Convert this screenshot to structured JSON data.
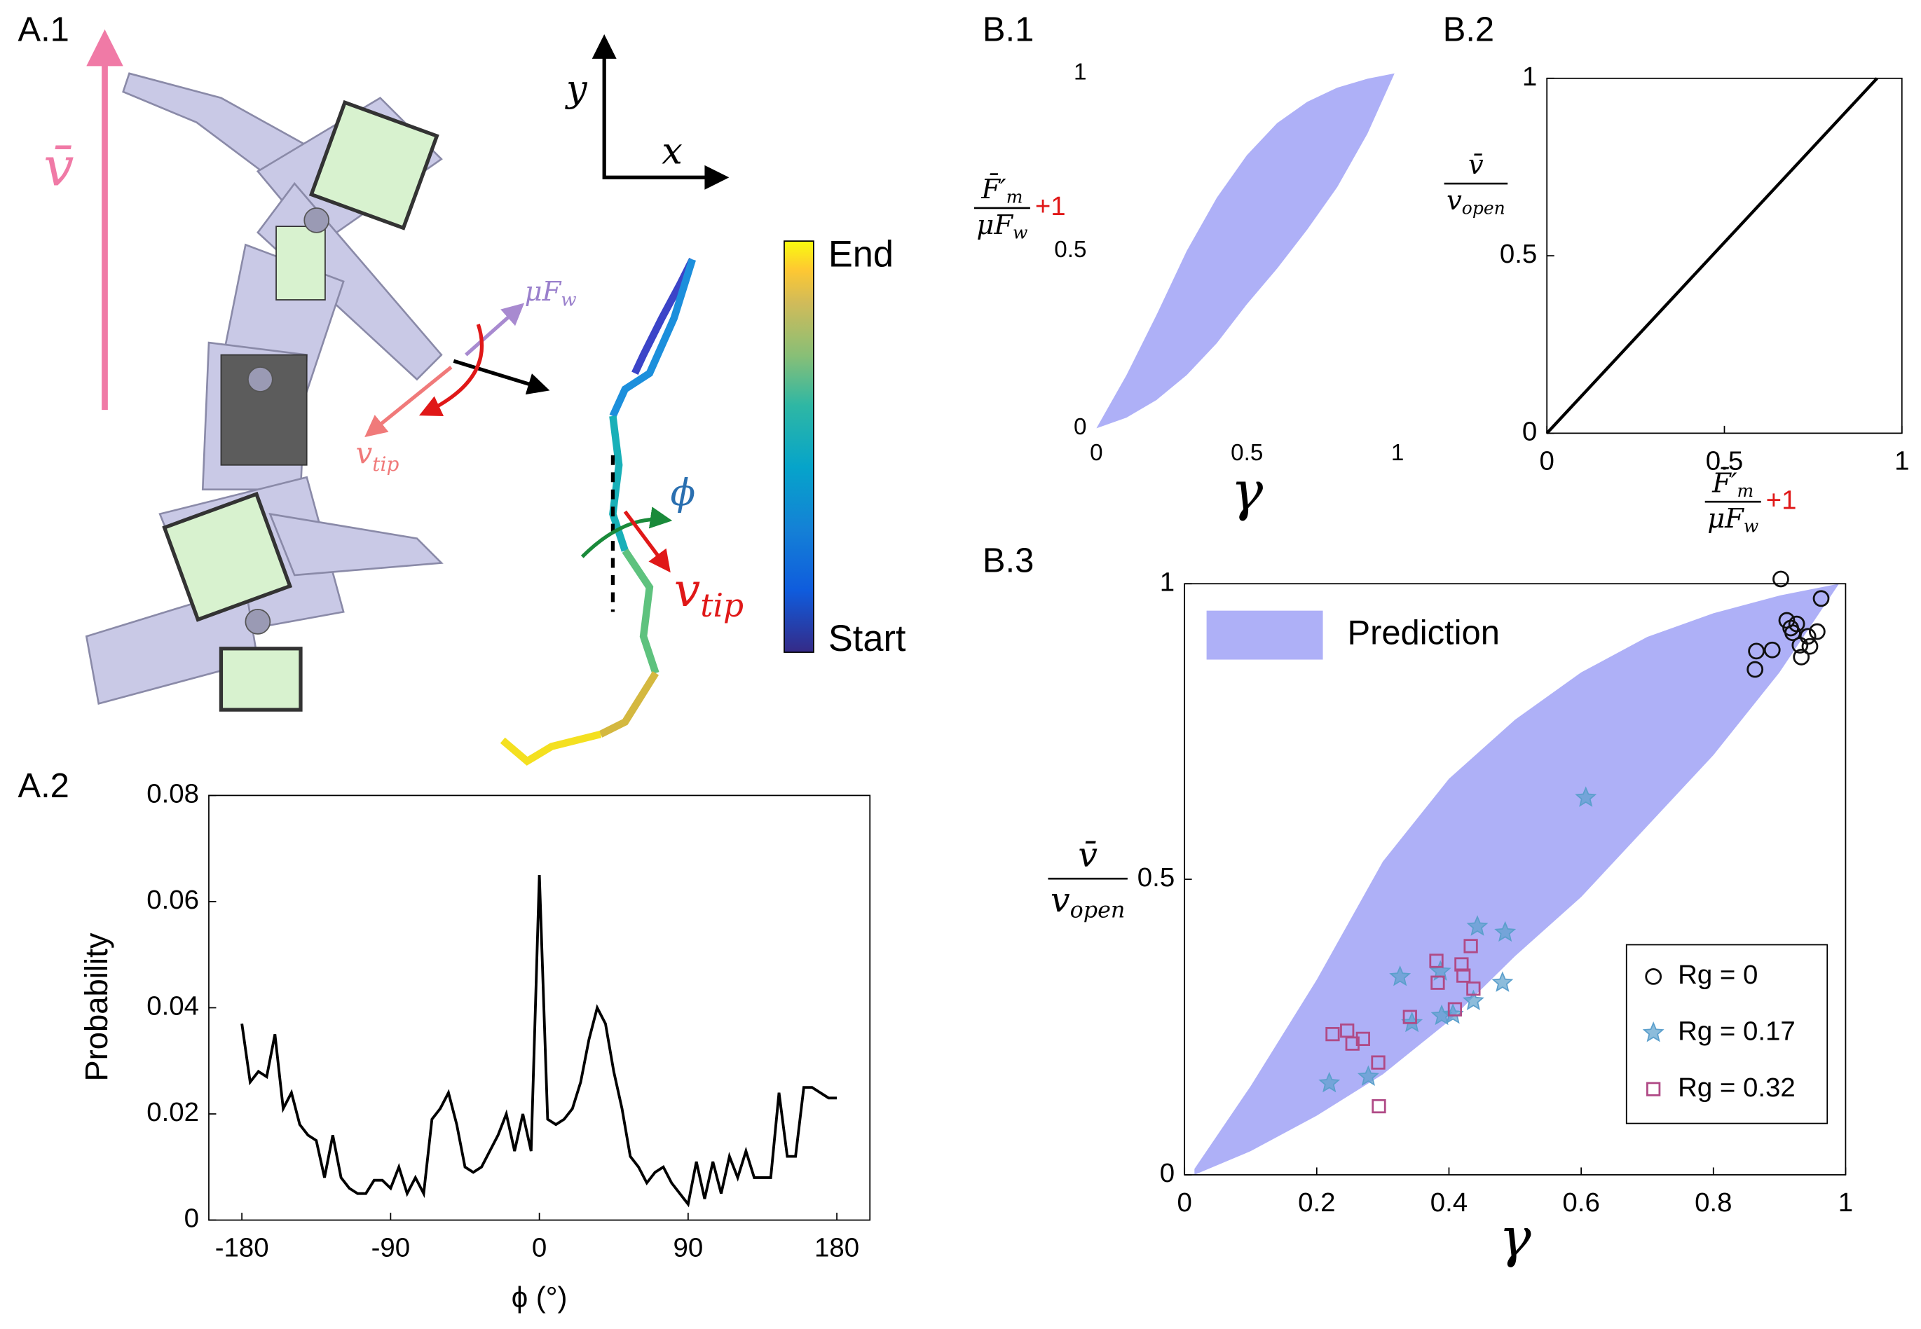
{
  "panel_labels": [
    "A.1",
    "A.2",
    "B.1",
    "B.2",
    "B.3"
  ],
  "diagram": {
    "velocity": "v̄",
    "axis_y": "y",
    "axis_x": "x",
    "friction": "μF",
    "friction_sub": "w",
    "tip_velocity": "v",
    "tip_sub": "tip",
    "angle": "ϕ",
    "tip_velocity_2": "v",
    "tip_sub_2": "tip",
    "colorbar_end": "End",
    "colorbar_start": "Start"
  },
  "chart_data": [
    {
      "type": "line",
      "xlabel": "ϕ (°)",
      "ylabel": "Probability",
      "color": "#000000",
      "xlim": [
        -200,
        200
      ],
      "ylim": [
        0,
        0.08
      ],
      "xticks": [
        -180,
        -90,
        0,
        90,
        180
      ],
      "yticks": [
        0,
        0.02,
        0.04,
        0.06,
        0.08
      ],
      "frame": true,
      "x": [
        -180,
        -175,
        -170,
        -165,
        -160,
        -155,
        -150,
        -145,
        -140,
        -135,
        -130,
        -125,
        -120,
        -115,
        -110,
        -105,
        -100,
        -95,
        -90,
        -85,
        -80,
        -75,
        -70,
        -65,
        -60,
        -55,
        -50,
        -45,
        -40,
        -35,
        -30,
        -25,
        -20,
        -15,
        -10,
        -5,
        0,
        5,
        10,
        15,
        20,
        25,
        30,
        35,
        40,
        45,
        50,
        55,
        60,
        65,
        70,
        75,
        80,
        85,
        90,
        95,
        100,
        105,
        110,
        115,
        120,
        125,
        130,
        135,
        140,
        145,
        150,
        155,
        160,
        165,
        170,
        175,
        180
      ],
      "values": [
        0.037,
        0.026,
        0.028,
        0.027,
        0.035,
        0.021,
        0.024,
        0.018,
        0.016,
        0.015,
        0.008,
        0.016,
        0.008,
        0.006,
        0.005,
        0.005,
        0.0075,
        0.0075,
        0.006,
        0.01,
        0.005,
        0.008,
        0.005,
        0.019,
        0.021,
        0.024,
        0.018,
        0.01,
        0.009,
        0.01,
        0.013,
        0.016,
        0.02,
        0.013,
        0.02,
        0.013,
        0.065,
        0.019,
        0.018,
        0.019,
        0.021,
        0.026,
        0.034,
        0.04,
        0.037,
        0.028,
        0.021,
        0.012,
        0.01,
        0.007,
        0.009,
        0.01,
        0.007,
        0.005,
        0.003,
        0.011,
        0.004,
        0.011,
        0.005,
        0.012,
        0.008,
        0.013,
        0.008,
        0.008,
        0.008,
        0.024,
        0.012,
        0.012,
        0.025,
        0.025,
        0.024,
        0.023,
        0.023
      ]
    },
    {
      "type": "area",
      "xlabel": "γ",
      "ylabel": {
        "numerator": "F̄′",
        "numerator_sub": "m",
        "denominator": "μF",
        "denominator_sub": "w",
        "suffix": "+1"
      },
      "color": "#aeb0f7",
      "xlim": [
        0,
        1
      ],
      "ylim": [
        0,
        1
      ],
      "xticks": [
        0,
        0.5,
        1
      ],
      "yticks": [
        0,
        0.5,
        1
      ],
      "frame": false,
      "x": [
        0,
        0.1,
        0.2,
        0.3,
        0.4,
        0.5,
        0.6,
        0.7,
        0.8,
        0.9,
        0.99
      ],
      "upper": [
        0,
        0.15,
        0.32,
        0.5,
        0.65,
        0.77,
        0.86,
        0.92,
        0.96,
        0.985,
        1
      ],
      "lower": [
        0,
        0.03,
        0.08,
        0.15,
        0.24,
        0.35,
        0.45,
        0.56,
        0.68,
        0.83,
        1
      ]
    },
    {
      "type": "line",
      "xlabel": {
        "numerator": "F̄′",
        "numerator_sub": "m",
        "denominator": "μF",
        "denominator_sub": "w",
        "suffix": "+1"
      },
      "ylabel": {
        "numerator": "v̄",
        "denominator": "v",
        "denominator_sub": "open"
      },
      "color": "#000000",
      "xlim": [
        0,
        1
      ],
      "ylim": [
        0,
        1
      ],
      "xticks": [
        0,
        0.5,
        1
      ],
      "yticks": [
        0,
        0.5,
        1
      ],
      "frame": true,
      "x": [
        0,
        0.93
      ],
      "values": [
        0,
        1
      ]
    },
    {
      "type": "scatter",
      "xlabel": "γ",
      "ylabel": {
        "numerator": "v̄",
        "denominator": "v",
        "denominator_sub": "open"
      },
      "xlim": [
        0,
        1
      ],
      "ylim": [
        0,
        1
      ],
      "xticks": [
        0,
        0.2,
        0.4,
        0.6,
        0.8,
        1
      ],
      "yticks": [
        0,
        0.5,
        1
      ],
      "frame": true,
      "legend": "lower right",
      "band": {
        "name": "Prediction",
        "color": "#aeb0f7",
        "x": [
          0.015,
          0.1,
          0.2,
          0.3,
          0.4,
          0.5,
          0.6,
          0.7,
          0.8,
          0.9,
          0.99
        ],
        "upper": [
          0.01,
          0.15,
          0.33,
          0.53,
          0.67,
          0.77,
          0.85,
          0.91,
          0.95,
          0.98,
          1
        ],
        "lower": [
          0,
          0.04,
          0.1,
          0.17,
          0.26,
          0.37,
          0.47,
          0.59,
          0.71,
          0.85,
          1
        ]
      },
      "series": [
        {
          "name": "Rg = 0",
          "marker": "circle",
          "color": "#111111",
          "x": [
            0.902,
            0.911,
            0.917,
            0.926,
            0.963,
            0.889,
            0.863,
            0.865,
            0.946,
            0.957,
            0.933,
            0.931,
            0.943,
            0.92
          ],
          "values": [
            1.008,
            0.938,
            0.925,
            0.932,
            0.975,
            0.888,
            0.855,
            0.886,
            0.894,
            0.919,
            0.876,
            0.896,
            0.911,
            0.917
          ]
        },
        {
          "name": "Rg = 0.17",
          "marker": "star",
          "color": "#5b9fcc",
          "x": [
            0.607,
            0.443,
            0.485,
            0.326,
            0.387,
            0.344,
            0.389,
            0.406,
            0.219,
            0.278,
            0.437,
            0.481
          ],
          "values": [
            0.638,
            0.42,
            0.41,
            0.335,
            0.344,
            0.257,
            0.269,
            0.271,
            0.155,
            0.166,
            0.294,
            0.325
          ]
        },
        {
          "name": "Rg = 0.32",
          "marker": "square",
          "color": "#b04a86",
          "x": [
            0.224,
            0.246,
            0.27,
            0.254,
            0.293,
            0.294,
            0.341,
            0.383,
            0.381,
            0.433,
            0.419,
            0.422,
            0.437,
            0.409
          ],
          "values": [
            0.238,
            0.244,
            0.23,
            0.222,
            0.19,
            0.116,
            0.267,
            0.325,
            0.362,
            0.387,
            0.356,
            0.337,
            0.315,
            0.28
          ]
        }
      ]
    }
  ]
}
